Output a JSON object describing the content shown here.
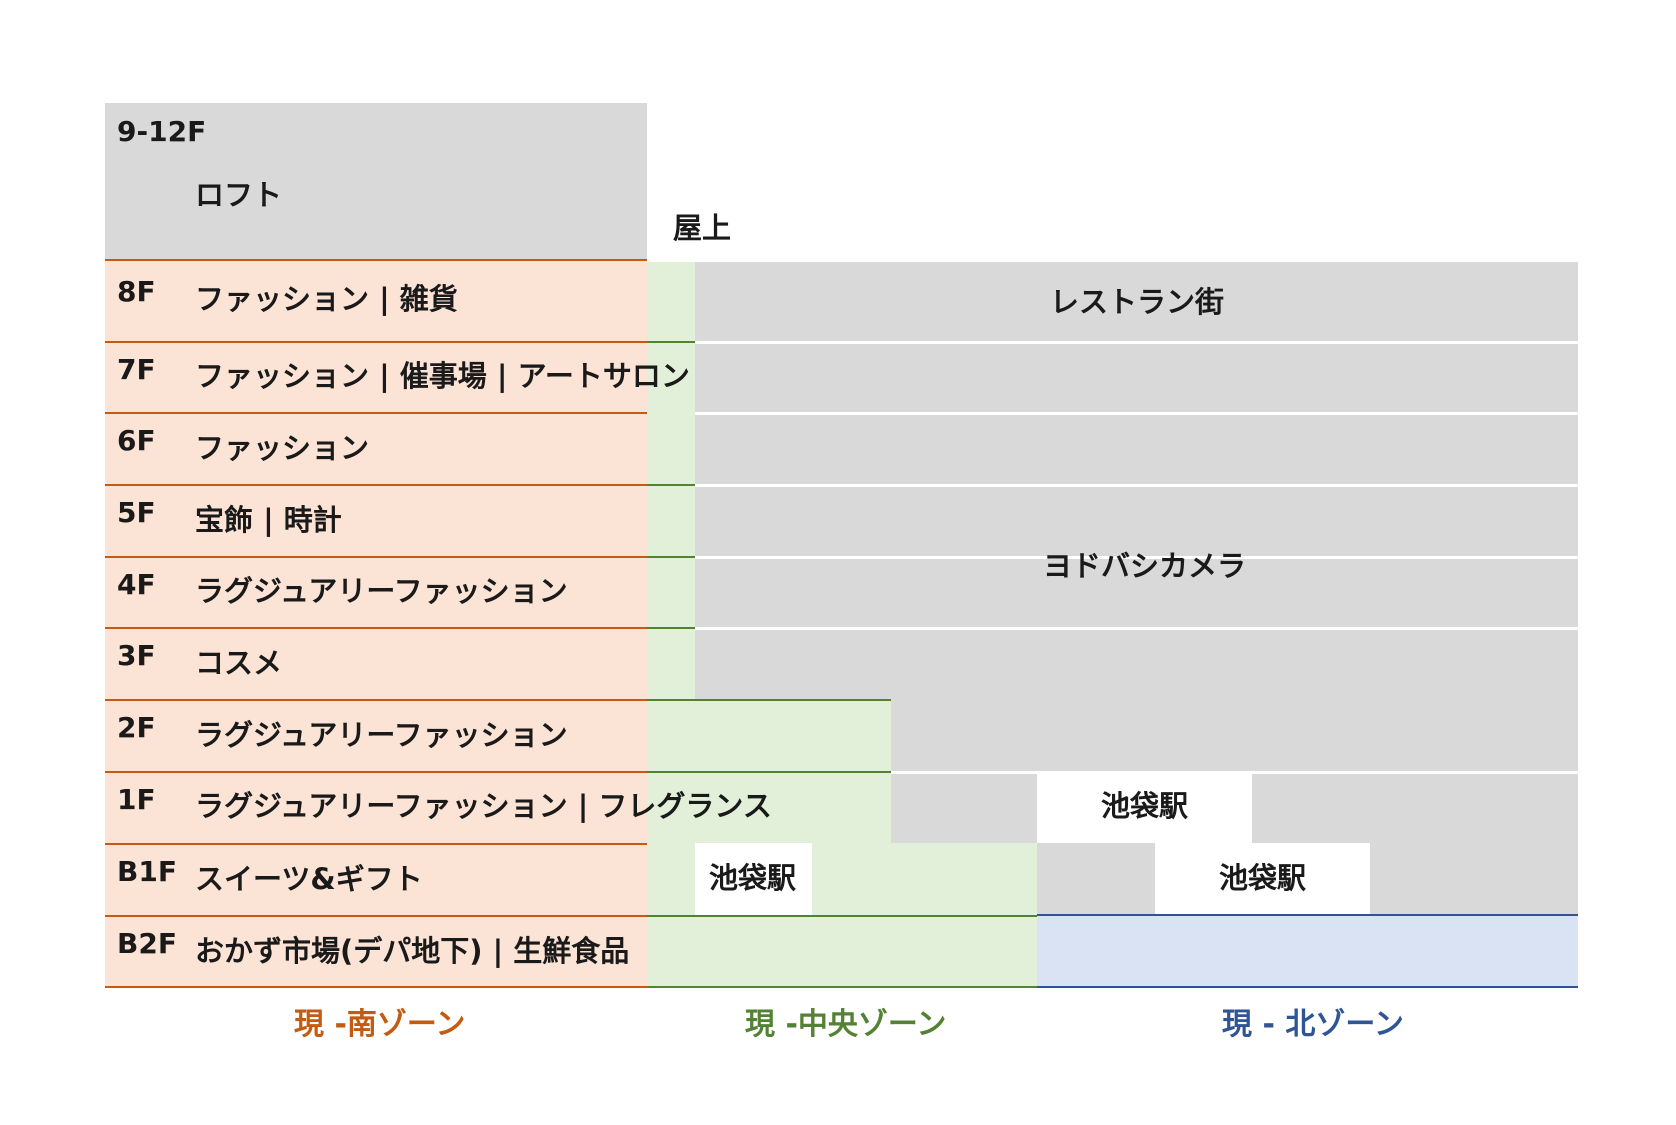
{
  "floors": [
    {
      "floor": "9-12F",
      "label": "ロフト"
    },
    {
      "floor": "8F",
      "label": "ファッション | 雑貨"
    },
    {
      "floor": "7F",
      "label": "ファッション | 催事場 | アートサロン"
    },
    {
      "floor": "6F",
      "label": "ファッション"
    },
    {
      "floor": "5F",
      "label": "宝飾 | 時計"
    },
    {
      "floor": "4F",
      "label": "ラグジュアリーファッション"
    },
    {
      "floor": "3F",
      "label": "コスメ"
    },
    {
      "floor": "2F",
      "label": "ラグジュアリーファッション"
    },
    {
      "floor": "1F",
      "label": "ラグジュアリーファッション | フレグランス"
    },
    {
      "floor": "B1F",
      "label": "スイーツ&ギフト"
    },
    {
      "floor": "B2F",
      "label": "おかず市場(デパ地下) | 生鮮食品"
    }
  ],
  "rooftop": "屋上",
  "restaurant": "レストラン街",
  "yodobashi": "ヨドバシカメラ",
  "station": "池袋駅",
  "zones": {
    "south": "現 -南ゾーン",
    "central": "現 -中央ゾーン",
    "north": "現 - 北ゾーン"
  },
  "colors": {
    "south": "#c55a11",
    "central": "#548235",
    "north": "#2f5597",
    "south_fill": "#fbe3d6",
    "central_fill": "#e2f0d9",
    "north_fill": "#dae3f3",
    "gray_fill": "#d9d9d9"
  }
}
